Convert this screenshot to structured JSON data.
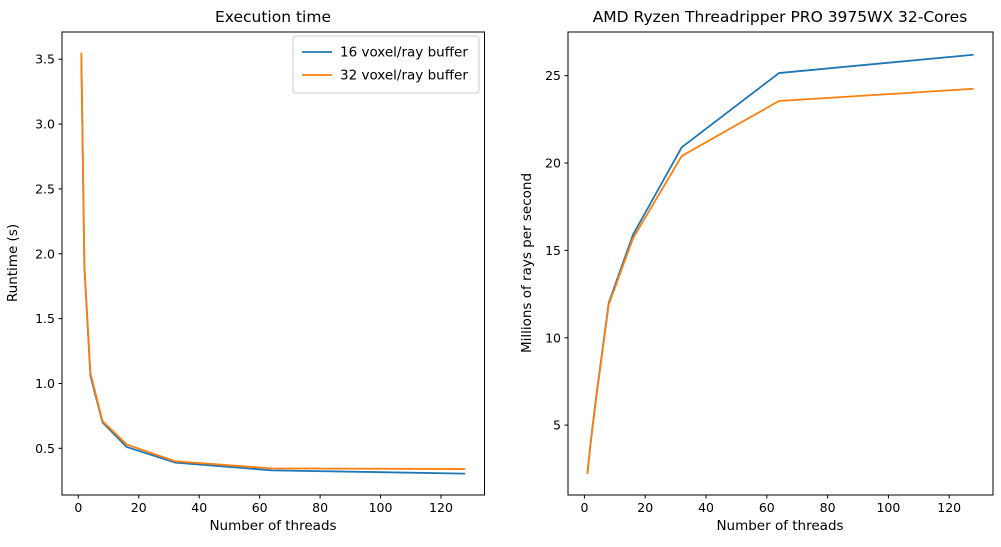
{
  "figure": {
    "background": "#ffffff"
  },
  "colors": {
    "series_blue": "#1f77b4",
    "series_orange": "#ff7f0e",
    "axis_text": "#000000",
    "legend_border": "#cccccc"
  },
  "chart_data": [
    {
      "type": "line",
      "title": "Execution time",
      "xlabel": "Number of threads",
      "ylabel": "Runtime (s)",
      "x": [
        1,
        2,
        4,
        8,
        16,
        32,
        64,
        128
      ],
      "series": [
        {
          "name": "16 voxel/ray buffer",
          "color": "#1f77b4",
          "values": [
            3.52,
            1.9,
            1.06,
            0.7,
            0.51,
            0.39,
            0.33,
            0.305
          ]
        },
        {
          "name": "32 voxel/ray buffer",
          "color": "#ff7f0e",
          "values": [
            3.55,
            1.92,
            1.08,
            0.71,
            0.53,
            0.4,
            0.345,
            0.34
          ]
        }
      ],
      "xlim": [
        -5.4,
        134.4
      ],
      "ylim": [
        0.14,
        3.71
      ],
      "xticks": [
        0,
        20,
        40,
        60,
        80,
        100,
        120
      ],
      "xtick_labels": [
        "0",
        "20",
        "40",
        "60",
        "80",
        "100",
        "120"
      ],
      "yticks": [
        0.5,
        1.0,
        1.5,
        2.0,
        2.5,
        3.0,
        3.5
      ],
      "ytick_labels": [
        "0.5",
        "1.0",
        "1.5",
        "2.0",
        "2.5",
        "3.0",
        "3.5"
      ],
      "grid": false,
      "legend": {
        "position": "upper right",
        "entries": [
          "16 voxel/ray buffer",
          "32 voxel/ray buffer"
        ]
      }
    },
    {
      "type": "line",
      "title": "AMD Ryzen Threadripper PRO 3975WX 32-Cores",
      "xlabel": "Number of threads",
      "ylabel": "Millions of rays per second",
      "x": [
        1,
        2,
        4,
        8,
        16,
        32,
        64,
        128
      ],
      "series": [
        {
          "name": "16 voxel/ray buffer",
          "color": "#1f77b4",
          "values": [
            2.25,
            3.95,
            6.8,
            12.0,
            15.9,
            20.9,
            25.15,
            26.2
          ]
        },
        {
          "name": "32 voxel/ray buffer",
          "color": "#ff7f0e",
          "values": [
            2.2,
            3.9,
            6.7,
            11.9,
            15.7,
            20.4,
            23.55,
            24.25
          ]
        }
      ],
      "xlim": [
        -5.4,
        134.4
      ],
      "ylim": [
        1.0,
        27.5
      ],
      "xticks": [
        0,
        20,
        40,
        60,
        80,
        100,
        120
      ],
      "xtick_labels": [
        "0",
        "20",
        "40",
        "60",
        "80",
        "100",
        "120"
      ],
      "yticks": [
        5,
        10,
        15,
        20,
        25
      ],
      "ytick_labels": [
        "5",
        "10",
        "15",
        "20",
        "25"
      ],
      "grid": false,
      "legend": null
    }
  ]
}
